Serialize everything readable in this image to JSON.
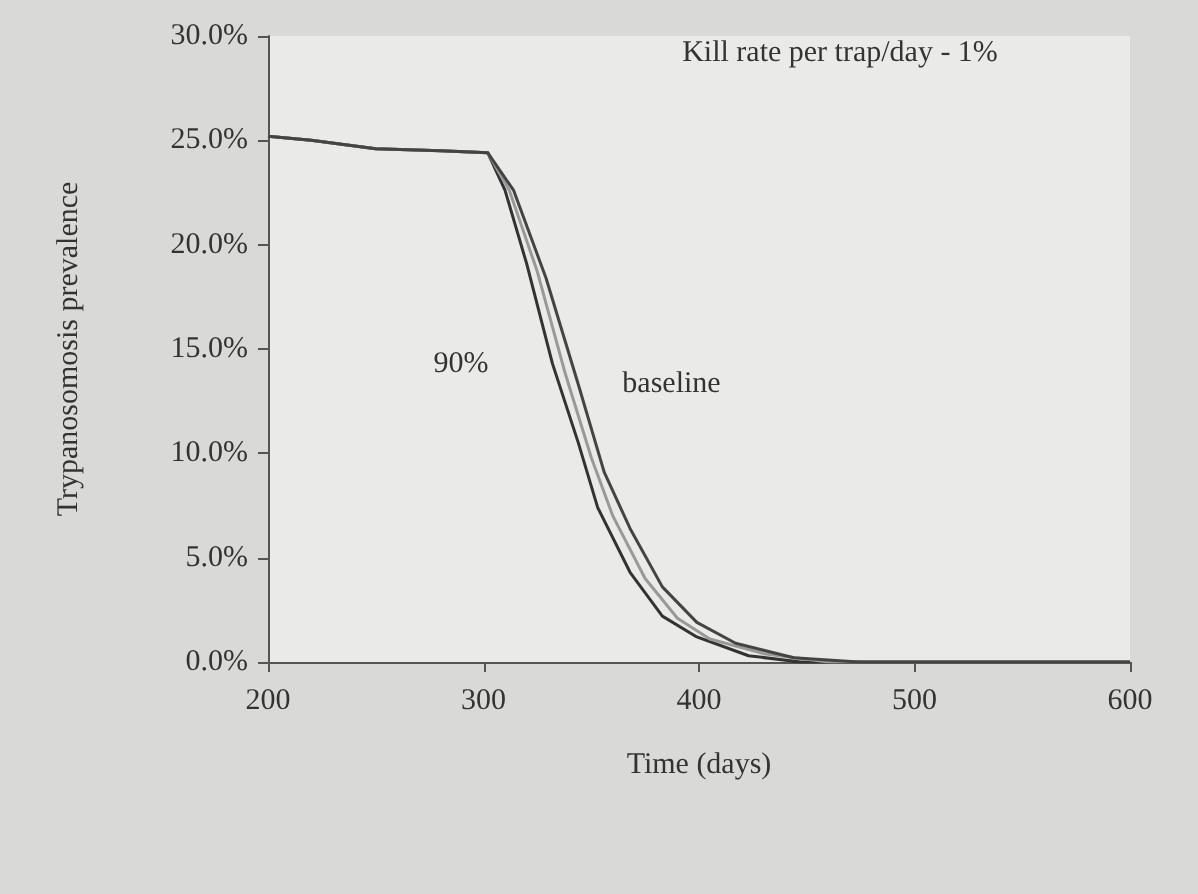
{
  "chart_data": {
    "type": "line",
    "title": "Kill rate per trap/day - 1%",
    "xlabel": "Time (days)",
    "ylabel": "Trypanosomosis prevalence",
    "xlim": [
      200,
      600
    ],
    "xticks": [
      200,
      300,
      400,
      500,
      600
    ],
    "ylim": [
      0,
      30
    ],
    "yticks": [
      {
        "value": 0,
        "label": "0.0%"
      },
      {
        "value": 5,
        "label": "5.0%"
      },
      {
        "value": 10,
        "label": "10.0%"
      },
      {
        "value": 15,
        "label": "15.0%"
      },
      {
        "value": 20,
        "label": "20.0%"
      },
      {
        "value": 25,
        "label": "25.0%"
      },
      {
        "value": 30,
        "label": "30.0%"
      }
    ],
    "grid": false,
    "marker": "none",
    "line_style": "solid",
    "series": [
      {
        "name": "90%",
        "color": "#333333",
        "x": [
          200,
          220,
          250,
          280,
          302,
          310,
          320,
          332,
          344,
          353,
          368,
          383,
          399,
          423,
          447,
          500,
          600
        ],
        "values": [
          25.2,
          25,
          24.6,
          24.5,
          24.4,
          22.6,
          19.1,
          14.3,
          10.5,
          7.4,
          4.3,
          2.2,
          1.2,
          0.3,
          0,
          0,
          0
        ]
      },
      {
        "color": "#999999",
        "x": [
          200,
          220,
          250,
          280,
          302,
          312,
          325,
          338,
          350,
          360,
          375,
          390,
          405,
          430,
          460,
          500,
          600
        ],
        "values": [
          25.2,
          25,
          24.6,
          24.5,
          24.4,
          22.6,
          18.7,
          13.8,
          9.8,
          7,
          4,
          2.1,
          1.1,
          0.4,
          0,
          0,
          0
        ]
      },
      {
        "name": "baseline",
        "color": "#444444",
        "x": [
          200,
          220,
          250,
          280,
          302,
          314,
          329,
          344,
          356,
          368,
          383,
          399,
          417,
          444,
          474,
          500,
          600
        ],
        "values": [
          25.2,
          25,
          24.6,
          24.5,
          24.4,
          22.6,
          18.4,
          13.3,
          9.1,
          6.4,
          3.6,
          1.9,
          0.9,
          0.2,
          0,
          0,
          0
        ]
      }
    ]
  }
}
